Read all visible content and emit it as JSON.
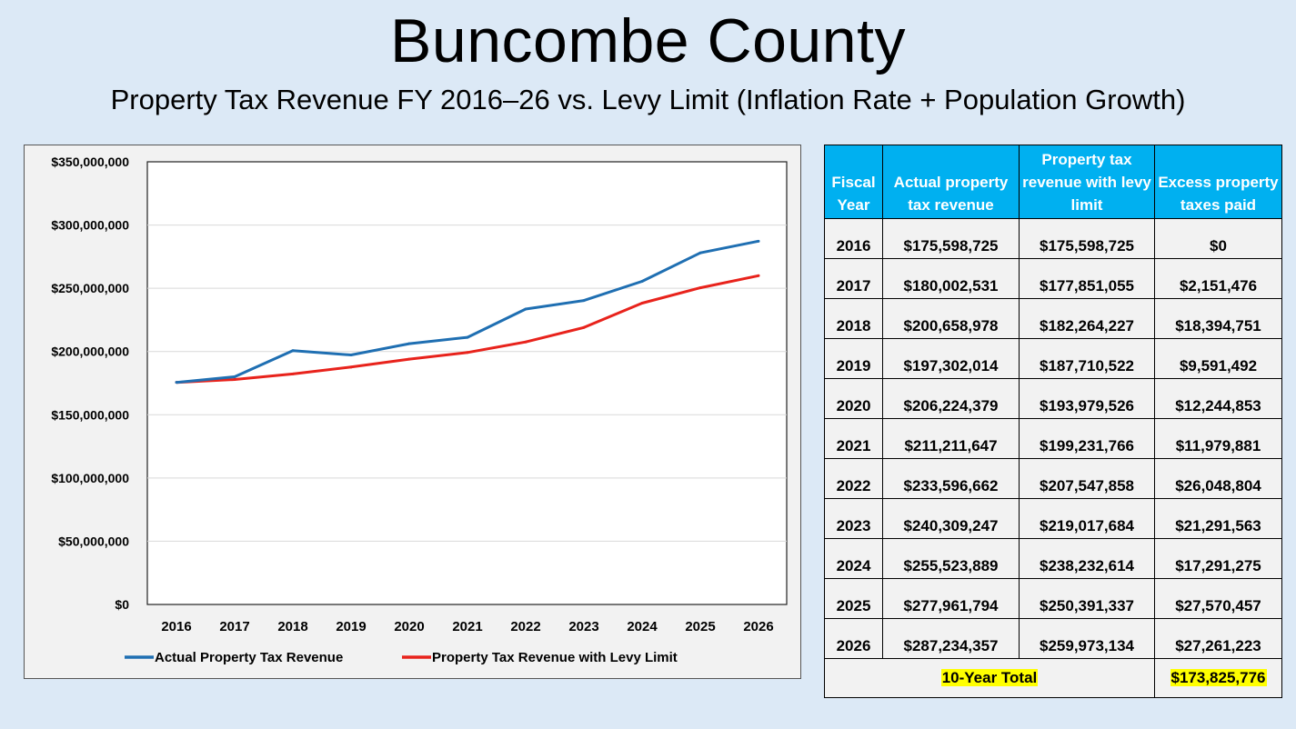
{
  "header": {
    "title": "Buncombe County",
    "subtitle": "Property Tax Revenue FY 2016–26 vs. Levy Limit (Inflation Rate + Population Growth)"
  },
  "chart_data": {
    "type": "line",
    "categories": [
      "2016",
      "2017",
      "2018",
      "2019",
      "2020",
      "2021",
      "2022",
      "2023",
      "2024",
      "2025",
      "2026"
    ],
    "series": [
      {
        "name": "Actual Property Tax Revenue",
        "color": "#1f6fb2",
        "values": [
          175598725,
          180002531,
          200658978,
          197302014,
          206224379,
          211211647,
          233596662,
          240309247,
          255523889,
          277961794,
          287234357
        ]
      },
      {
        "name": "Property Tax Revenue with Levy Limit",
        "color": "#e8231c",
        "values": [
          175598725,
          177851055,
          182264227,
          187710522,
          193979526,
          199231766,
          207547858,
          219017684,
          238232614,
          250391337,
          259973134
        ]
      }
    ],
    "ylim": [
      0,
      350000000
    ],
    "ytick_values": [
      0,
      50000000,
      100000000,
      150000000,
      200000000,
      250000000,
      300000000,
      350000000
    ],
    "ytick_labels": [
      "$0",
      "$50,000,000",
      "$100,000,000",
      "$150,000,000",
      "$200,000,000",
      "$250,000,000",
      "$300,000,000",
      "$350,000,000"
    ],
    "legend_position": "bottom",
    "grid": true,
    "title": "",
    "xlabel": "",
    "ylabel": ""
  },
  "table": {
    "headers": [
      "Fiscal Year",
      "Actual property tax revenue",
      "Property tax revenue with levy limit",
      "Excess property taxes paid"
    ],
    "rows": [
      [
        "2016",
        "$175,598,725",
        "$175,598,725",
        "$0"
      ],
      [
        "2017",
        "$180,002,531",
        "$177,851,055",
        "$2,151,476"
      ],
      [
        "2018",
        "$200,658,978",
        "$182,264,227",
        "$18,394,751"
      ],
      [
        "2019",
        "$197,302,014",
        "$187,710,522",
        "$9,591,492"
      ],
      [
        "2020",
        "$206,224,379",
        "$193,979,526",
        "$12,244,853"
      ],
      [
        "2021",
        "$211,211,647",
        "$199,231,766",
        "$11,979,881"
      ],
      [
        "2022",
        "$233,596,662",
        "$207,547,858",
        "$26,048,804"
      ],
      [
        "2023",
        "$240,309,247",
        "$219,017,684",
        "$21,291,563"
      ],
      [
        "2024",
        "$255,523,889",
        "$238,232,614",
        "$17,291,275"
      ],
      [
        "2025",
        "$277,961,794",
        "$250,391,337",
        "$27,570,457"
      ],
      [
        "2026",
        "$287,234,357",
        "$259,973,134",
        "$27,261,223"
      ]
    ],
    "total_label": "10-Year Total",
    "total_value": "$173,825,776",
    "header_color": "#00b0f0",
    "highlight_color": "#ffff00"
  }
}
